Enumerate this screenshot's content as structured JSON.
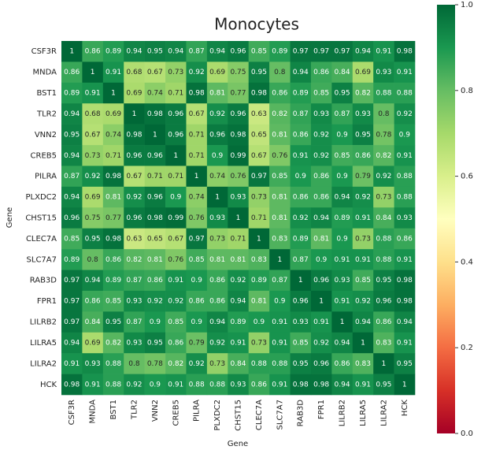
{
  "chart_data": {
    "type": "heatmap",
    "title": "Monocytes",
    "xlabel": "Gene",
    "ylabel": "Gene",
    "categories": [
      "CSF3R",
      "MNDA",
      "BST1",
      "TLR2",
      "VNN2",
      "CREB5",
      "PILRA",
      "PLXDC2",
      "CHST15",
      "CLEC7A",
      "SLC7A7",
      "RAB3D",
      "FPR1",
      "LILRB2",
      "LILRA5",
      "LILRA2",
      "HCK"
    ],
    "values": [
      [
        1,
        0.86,
        0.89,
        0.94,
        0.95,
        0.94,
        0.87,
        0.94,
        0.96,
        0.85,
        0.89,
        0.97,
        0.97,
        0.97,
        0.94,
        0.91,
        0.98
      ],
      [
        0.86,
        1,
        0.91,
        0.68,
        0.67,
        0.73,
        0.92,
        0.69,
        0.75,
        0.95,
        0.8,
        0.94,
        0.86,
        0.84,
        0.69,
        0.93,
        0.91
      ],
      [
        0.89,
        0.91,
        1,
        0.69,
        0.74,
        0.71,
        0.98,
        0.81,
        0.77,
        0.98,
        0.86,
        0.89,
        0.85,
        0.95,
        0.82,
        0.88,
        0.88
      ],
      [
        0.94,
        0.68,
        0.69,
        1,
        0.98,
        0.96,
        0.67,
        0.92,
        0.96,
        0.63,
        0.82,
        0.87,
        0.93,
        0.87,
        0.93,
        0.8,
        0.92
      ],
      [
        0.95,
        0.67,
        0.74,
        0.98,
        1,
        0.96,
        0.71,
        0.96,
        0.98,
        0.65,
        0.81,
        0.86,
        0.92,
        0.9,
        0.95,
        0.78,
        0.9
      ],
      [
        0.94,
        0.73,
        0.71,
        0.96,
        0.96,
        1,
        0.71,
        0.9,
        0.99,
        0.67,
        0.76,
        0.91,
        0.92,
        0.85,
        0.86,
        0.82,
        0.91
      ],
      [
        0.87,
        0.92,
        0.98,
        0.67,
        0.71,
        0.71,
        1,
        0.74,
        0.76,
        0.97,
        0.85,
        0.9,
        0.86,
        0.9,
        0.79,
        0.92,
        0.88
      ],
      [
        0.94,
        0.69,
        0.81,
        0.92,
        0.96,
        0.9,
        0.74,
        1,
        0.93,
        0.73,
        0.81,
        0.86,
        0.86,
        0.94,
        0.92,
        0.73,
        0.88
      ],
      [
        0.96,
        0.75,
        0.77,
        0.96,
        0.98,
        0.99,
        0.76,
        0.93,
        1,
        0.71,
        0.81,
        0.92,
        0.94,
        0.89,
        0.91,
        0.84,
        0.93
      ],
      [
        0.85,
        0.95,
        0.98,
        0.63,
        0.65,
        0.67,
        0.97,
        0.73,
        0.71,
        1,
        0.83,
        0.89,
        0.81,
        0.9,
        0.73,
        0.88,
        0.86
      ],
      [
        0.89,
        0.8,
        0.86,
        0.82,
        0.81,
        0.76,
        0.85,
        0.81,
        0.81,
        0.83,
        1,
        0.87,
        0.9,
        0.91,
        0.91,
        0.88,
        0.91
      ],
      [
        0.97,
        0.94,
        0.89,
        0.87,
        0.86,
        0.91,
        0.9,
        0.86,
        0.92,
        0.89,
        0.87,
        1,
        0.96,
        0.93,
        0.85,
        0.95,
        0.98
      ],
      [
        0.97,
        0.86,
        0.85,
        0.93,
        0.92,
        0.92,
        0.86,
        0.86,
        0.94,
        0.81,
        0.9,
        0.96,
        1,
        0.91,
        0.92,
        0.96,
        0.98
      ],
      [
        0.97,
        0.84,
        0.95,
        0.87,
        0.9,
        0.85,
        0.9,
        0.94,
        0.89,
        0.9,
        0.91,
        0.93,
        0.91,
        1,
        0.94,
        0.86,
        0.94
      ],
      [
        0.94,
        0.69,
        0.82,
        0.93,
        0.95,
        0.86,
        0.79,
        0.92,
        0.91,
        0.73,
        0.91,
        0.85,
        0.92,
        0.94,
        1,
        0.83,
        0.91
      ],
      [
        0.91,
        0.93,
        0.88,
        0.8,
        0.78,
        0.82,
        0.92,
        0.73,
        0.84,
        0.88,
        0.88,
        0.95,
        0.96,
        0.86,
        0.83,
        1,
        0.95
      ],
      [
        0.98,
        0.91,
        0.88,
        0.92,
        0.9,
        0.91,
        0.88,
        0.88,
        0.93,
        0.86,
        0.91,
        0.98,
        0.98,
        0.94,
        0.91,
        0.95,
        1
      ]
    ],
    "clim": [
      0,
      1
    ],
    "cticks": [
      {
        "value": 0,
        "label": "0.0"
      },
      {
        "value": 0.2,
        "label": "0.2"
      },
      {
        "value": 0.4,
        "label": "0.4"
      },
      {
        "value": 0.6,
        "label": "0.6"
      },
      {
        "value": 0.8,
        "label": "0.8"
      },
      {
        "value": 1,
        "label": "1.0"
      }
    ],
    "colorscale": [
      "#a50026",
      "#d73027",
      "#f46d43",
      "#fdae61",
      "#fee08b",
      "#ffffbf",
      "#d9ef8b",
      "#a6d96a",
      "#66bd63",
      "#1a9850",
      "#006837"
    ]
  }
}
